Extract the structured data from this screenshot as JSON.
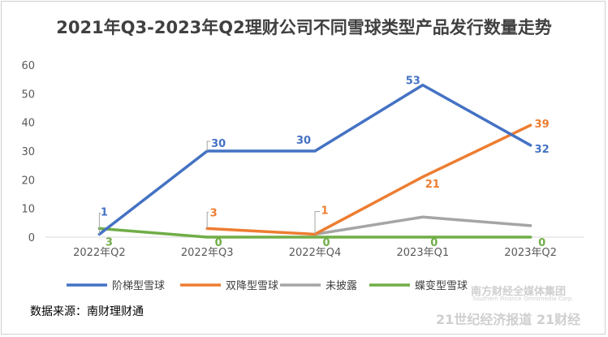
{
  "chart_data": {
    "type": "line",
    "title": "2021年Q3-2023年Q2理财公司不同雪球类型产品发行数量走势",
    "categories": [
      "2022年Q2",
      "2022年Q3",
      "2022年Q4",
      "2023年Q1",
      "2023年Q2"
    ],
    "ylim": [
      0,
      60
    ],
    "yticks": [
      "0",
      "10",
      "20",
      "30",
      "40",
      "50",
      "60"
    ],
    "grid": false,
    "legend_position": "bottom",
    "series": [
      {
        "name": "阶梯型雪球",
        "color": "#4472C4",
        "values": [
          1,
          30,
          30,
          53,
          32
        ],
        "labels": [
          "1",
          "30",
          "30",
          "53",
          "32"
        ]
      },
      {
        "name": "双降型雪球",
        "color": "#ED7D31",
        "values": [
          null,
          3,
          1,
          21,
          39
        ],
        "labels": [
          "",
          "3",
          "1",
          "21",
          "39"
        ]
      },
      {
        "name": "未披露",
        "color": "#A5A5A5",
        "values": [
          null,
          null,
          1,
          7,
          4
        ],
        "labels": [
          "",
          "",
          "",
          "",
          ""
        ]
      },
      {
        "name": "蝶变型雪球",
        "color": "#70AD47",
        "values": [
          3,
          0,
          0,
          0,
          0
        ],
        "labels": [
          "3",
          "0",
          "0",
          "0",
          "0"
        ]
      }
    ]
  },
  "source": "数据来源：南财理财通",
  "watermark": {
    "line1": "南方财经全媒体集团",
    "line2": "Southern Finance Omnimedia Corp.",
    "line3": "21世纪经济报道 21财经"
  }
}
